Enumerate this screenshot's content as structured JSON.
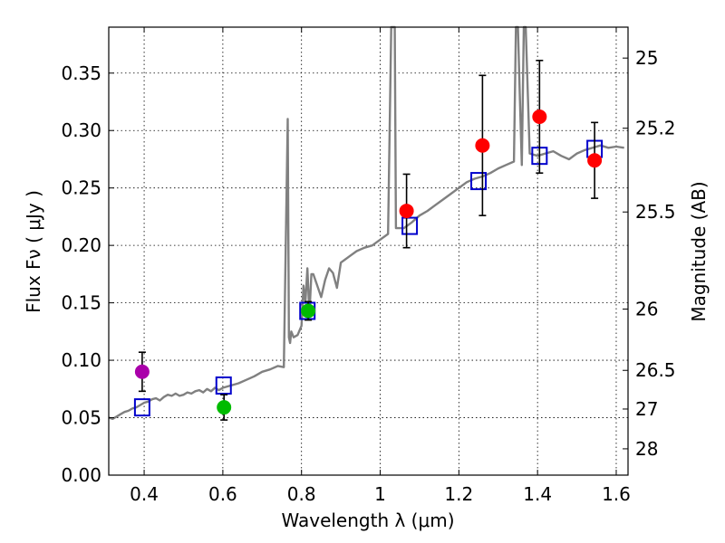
{
  "chart_data": {
    "type": "scatter",
    "title": "",
    "xlabel": "Wavelength  λ (μm)",
    "ylabel": "Flux  Fν  ( μJy )",
    "y2label": "Magnitude (AB)",
    "xlim": [
      0.31,
      1.63
    ],
    "ylim": [
      0.0,
      0.39
    ],
    "grid": true,
    "x_ticks": [
      "0.4",
      "0.6",
      "0.8",
      "1",
      "1.2",
      "1.4",
      "1.6"
    ],
    "x_tick_values": [
      0.4,
      0.6,
      0.8,
      1.0,
      1.2,
      1.4,
      1.6
    ],
    "y_ticks": [
      "0.00",
      "0.05",
      "0.10",
      "0.15",
      "0.20",
      "0.25",
      "0.30",
      "0.35"
    ],
    "y_tick_values": [
      0.0,
      0.05,
      0.1,
      0.15,
      0.2,
      0.25,
      0.3,
      0.35
    ],
    "mag_ticks": [
      "25",
      "25.2",
      "25.5",
      "26",
      "26.5",
      "27",
      "28"
    ],
    "mag_tick_values": [
      25,
      25.2,
      25.5,
      26,
      26.5,
      27,
      28
    ],
    "colors": {
      "spectrum": "#808080",
      "model": "#0000cc",
      "red": "#ff0000",
      "green": "#00bb00",
      "magenta": "#aa00aa",
      "errorbar": "#000000"
    },
    "series": [
      {
        "name": "model spectrum",
        "kind": "line",
        "x": [
          0.31,
          0.32,
          0.33,
          0.34,
          0.35,
          0.36,
          0.37,
          0.38,
          0.39,
          0.4,
          0.41,
          0.42,
          0.43,
          0.44,
          0.45,
          0.46,
          0.47,
          0.48,
          0.49,
          0.5,
          0.51,
          0.52,
          0.53,
          0.54,
          0.55,
          0.56,
          0.57,
          0.58,
          0.59,
          0.6,
          0.62,
          0.64,
          0.66,
          0.68,
          0.7,
          0.72,
          0.74,
          0.755,
          0.765,
          0.768,
          0.771,
          0.774,
          0.78,
          0.79,
          0.8,
          0.805,
          0.81,
          0.815,
          0.82,
          0.825,
          0.83,
          0.84,
          0.85,
          0.86,
          0.87,
          0.88,
          0.89,
          0.9,
          0.92,
          0.94,
          0.96,
          0.98,
          1.0,
          1.02,
          1.028,
          1.031,
          1.034,
          1.037,
          1.04,
          1.06,
          1.08,
          1.1,
          1.12,
          1.14,
          1.16,
          1.18,
          1.2,
          1.22,
          1.24,
          1.26,
          1.28,
          1.3,
          1.32,
          1.34,
          1.345,
          1.35,
          1.355,
          1.36,
          1.365,
          1.37,
          1.38,
          1.4,
          1.42,
          1.44,
          1.46,
          1.48,
          1.5,
          1.52,
          1.54,
          1.56,
          1.58,
          1.6,
          1.62
        ],
        "y": [
          0.05,
          0.049,
          0.051,
          0.053,
          0.055,
          0.056,
          0.058,
          0.059,
          0.061,
          0.063,
          0.064,
          0.066,
          0.067,
          0.065,
          0.068,
          0.07,
          0.069,
          0.071,
          0.069,
          0.07,
          0.072,
          0.071,
          0.073,
          0.074,
          0.072,
          0.075,
          0.073,
          0.076,
          0.074,
          0.076,
          0.078,
          0.08,
          0.083,
          0.086,
          0.09,
          0.092,
          0.095,
          0.094,
          0.31,
          0.12,
          0.115,
          0.125,
          0.12,
          0.122,
          0.13,
          0.165,
          0.15,
          0.18,
          0.14,
          0.175,
          0.175,
          0.165,
          0.155,
          0.17,
          0.18,
          0.176,
          0.163,
          0.185,
          0.19,
          0.195,
          0.198,
          0.2,
          0.205,
          0.21,
          0.39,
          0.39,
          0.39,
          0.39,
          0.215,
          0.215,
          0.22,
          0.226,
          0.23,
          0.235,
          0.24,
          0.245,
          0.25,
          0.255,
          0.258,
          0.26,
          0.263,
          0.267,
          0.27,
          0.273,
          0.39,
          0.39,
          0.33,
          0.27,
          0.39,
          0.39,
          0.28,
          0.278,
          0.28,
          0.282,
          0.278,
          0.275,
          0.28,
          0.283,
          0.285,
          0.287,
          0.285,
          0.286,
          0.285
        ]
      },
      {
        "name": "model photometry",
        "kind": "open-square",
        "x": [
          0.395,
          0.602,
          0.815,
          1.075,
          1.25,
          1.405,
          1.545
        ],
        "y": [
          0.059,
          0.078,
          0.143,
          0.217,
          0.256,
          0.278,
          0.284
        ]
      },
      {
        "name": "observed (red)",
        "kind": "filled-circle",
        "color": "red",
        "x": [
          1.067,
          1.26,
          1.405,
          1.545
        ],
        "y": [
          0.23,
          0.287,
          0.312,
          0.274
        ],
        "yerr": [
          0.032,
          0.061,
          0.049,
          0.033
        ]
      },
      {
        "name": "observed (green)",
        "kind": "filled-circle",
        "color": "green",
        "x": [
          0.603,
          0.817
        ],
        "y": [
          0.059,
          0.143
        ],
        "yerr": [
          0.011,
          0.008
        ]
      },
      {
        "name": "observed (magenta)",
        "kind": "filled-circle",
        "color": "magenta",
        "x": [
          0.395
        ],
        "y": [
          0.09
        ],
        "yerr": [
          0.017
        ]
      }
    ]
  }
}
